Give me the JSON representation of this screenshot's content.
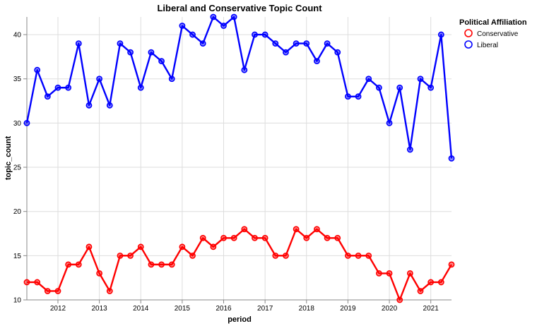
{
  "chart_data": {
    "type": "line",
    "title": "Liberal and Conservative Topic Count",
    "xlabel": "period",
    "ylabel": "topic_count",
    "xlim": [
      2011.25,
      2021.5
    ],
    "ylim": [
      10,
      42
    ],
    "x_ticks": [
      2012,
      2013,
      2014,
      2015,
      2016,
      2017,
      2018,
      2019,
      2020,
      2021
    ],
    "y_ticks": [
      10,
      15,
      20,
      25,
      30,
      35,
      40
    ],
    "grid": true,
    "legend": {
      "title": "Political Affiliation",
      "position": "right",
      "entries": [
        {
          "label": "Conservative",
          "color": "#ff0000"
        },
        {
          "label": "Liberal",
          "color": "#0000ff"
        }
      ]
    },
    "x": [
      2011.25,
      2011.5,
      2011.75,
      2012.0,
      2012.25,
      2012.5,
      2012.75,
      2013.0,
      2013.25,
      2013.5,
      2013.75,
      2014.0,
      2014.25,
      2014.5,
      2014.75,
      2015.0,
      2015.25,
      2015.5,
      2015.75,
      2016.0,
      2016.25,
      2016.5,
      2016.75,
      2017.0,
      2017.25,
      2017.5,
      2017.75,
      2018.0,
      2018.25,
      2018.5,
      2018.75,
      2019.0,
      2019.25,
      2019.5,
      2019.75,
      2020.0,
      2020.25,
      2020.5,
      2020.75,
      2021.0,
      2021.25,
      2021.5
    ],
    "series": [
      {
        "name": "Conservative",
        "color": "#ff0000",
        "values": [
          12,
          12,
          11,
          11,
          14,
          14,
          16,
          13,
          11,
          15,
          15,
          16,
          14,
          14,
          14,
          16,
          15,
          17,
          16,
          17,
          17,
          18,
          17,
          17,
          15,
          15,
          18,
          17,
          18,
          17,
          17,
          15,
          15,
          15,
          13,
          13,
          10,
          13,
          11,
          12,
          12,
          14
        ]
      },
      {
        "name": "Liberal",
        "color": "#0000ff",
        "values": [
          30,
          36,
          33,
          34,
          34,
          39,
          32,
          35,
          32,
          39,
          38,
          34,
          38,
          37,
          35,
          41,
          40,
          39,
          42,
          41,
          42,
          36,
          40,
          40,
          39,
          38,
          39,
          39,
          37,
          39,
          38,
          33,
          33,
          35,
          34,
          30,
          34,
          27,
          35,
          34,
          40,
          26
        ]
      }
    ]
  }
}
